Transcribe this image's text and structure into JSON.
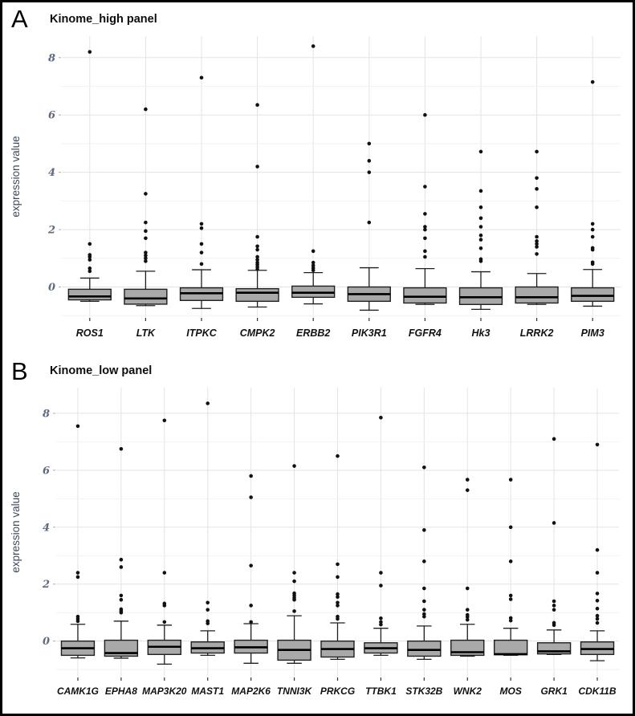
{
  "figure": {
    "background": "#ffffff",
    "border_color": "#000000"
  },
  "style": {
    "box_fill": "#a9a9a9",
    "box_stroke": "#1f1f1f",
    "median_color": "#000000",
    "whisker_color": "#1f1f1f",
    "outlier_color": "#111111",
    "grid_major": "#e3e3e3",
    "grid_minor": "#f2f2f2",
    "x_tick_color": "#333333",
    "y_tick_color": "#aaaaaa",
    "tick_label_color": "#5c6b80",
    "axis_title_color": "#3e4a5c",
    "x_label_color": "#111111"
  },
  "chart_data": [
    {
      "type": "boxplot",
      "letter": "A",
      "title": "Kinome_high panel",
      "ylabel": "expression value",
      "yticks": [
        0,
        2,
        4,
        6,
        8
      ],
      "ylim": [
        -1.05,
        8.75
      ],
      "grid": true,
      "legend": "none",
      "categories": [
        "ROS1",
        "LTK",
        "ITPKC",
        "CMPK2",
        "ERBB2",
        "PIK3R1",
        "FGFR4",
        "Hk3",
        "LRRK2",
        "PIM3"
      ],
      "boxes": [
        {
          "lo": -0.5,
          "q1": -0.45,
          "med": -0.33,
          "q3": -0.08,
          "hi": 0.31,
          "out": [
            0.55,
            0.65,
            0.95,
            1.05,
            1.12,
            1.5,
            8.2
          ]
        },
        {
          "lo": -0.65,
          "q1": -0.6,
          "med": -0.4,
          "q3": -0.08,
          "hi": 0.55,
          "out": [
            0.9,
            1.0,
            1.1,
            1.2,
            1.7,
            1.95,
            2.25,
            3.25,
            6.2
          ]
        },
        {
          "lo": -0.75,
          "q1": -0.47,
          "med": -0.22,
          "q3": -0.03,
          "hi": 0.6,
          "out": [
            0.8,
            1.2,
            1.5,
            2.05,
            2.2,
            7.3
          ]
        },
        {
          "lo": -0.7,
          "q1": -0.5,
          "med": -0.2,
          "q3": -0.06,
          "hi": 0.58,
          "out": [
            0.62,
            0.7,
            0.78,
            0.85,
            0.95,
            1.05,
            1.3,
            1.42,
            1.75,
            4.2,
            6.35
          ]
        },
        {
          "lo": -0.59,
          "q1": -0.36,
          "med": -0.2,
          "q3": 0.03,
          "hi": 0.5,
          "out": [
            0.58,
            0.66,
            0.75,
            0.85,
            1.25,
            8.4
          ]
        },
        {
          "lo": -0.81,
          "q1": -0.5,
          "med": -0.25,
          "q3": 0.0,
          "hi": 0.67,
          "out": [
            2.25,
            4.0,
            4.4,
            5.0
          ]
        },
        {
          "lo": -0.61,
          "q1": -0.56,
          "med": -0.34,
          "q3": -0.03,
          "hi": 0.64,
          "out": [
            1.05,
            1.25,
            1.7,
            2.0,
            2.1,
            2.55,
            3.5,
            6.0
          ]
        },
        {
          "lo": -0.78,
          "q1": -0.61,
          "med": -0.36,
          "q3": -0.03,
          "hi": 0.53,
          "out": [
            0.9,
            0.97,
            1.35,
            1.65,
            1.8,
            2.1,
            2.4,
            2.78,
            3.35,
            4.72
          ]
        },
        {
          "lo": -0.61,
          "q1": -0.56,
          "med": -0.36,
          "q3": 0.0,
          "hi": 0.47,
          "out": [
            1.15,
            1.4,
            1.5,
            1.6,
            1.75,
            2.78,
            3.42,
            3.8,
            4.72
          ]
        },
        {
          "lo": -0.67,
          "q1": -0.5,
          "med": -0.31,
          "q3": -0.03,
          "hi": 0.61,
          "out": [
            0.8,
            0.86,
            1.3,
            1.36,
            1.75,
            2.0,
            2.2,
            7.15
          ]
        }
      ]
    },
    {
      "type": "boxplot",
      "letter": "B",
      "title": "Kinome_low panel",
      "ylabel": "expression value",
      "yticks": [
        0,
        2,
        4,
        6,
        8
      ],
      "ylim": [
        -1.25,
        8.9
      ],
      "grid": true,
      "legend": "none",
      "categories": [
        "CAMK1G",
        "EPHA8",
        "MAP3K20",
        "MAST1",
        "MAP2K6",
        "TNNI3K",
        "PRKCG",
        "TTBK1",
        "STK32B",
        "WNK2",
        "MOS",
        "GRK1",
        "CDK11B"
      ],
      "boxes": [
        {
          "lo": -0.59,
          "q1": -0.5,
          "med": -0.25,
          "q3": 0.0,
          "hi": 0.59,
          "out": [
            0.7,
            0.78,
            0.86,
            2.25,
            2.4,
            7.55
          ]
        },
        {
          "lo": -0.6,
          "q1": -0.53,
          "med": -0.42,
          "q3": 0.03,
          "hi": 0.7,
          "out": [
            1.0,
            1.06,
            1.12,
            1.45,
            1.6,
            2.6,
            2.86,
            6.75
          ]
        },
        {
          "lo": -0.81,
          "q1": -0.47,
          "med": -0.2,
          "q3": 0.03,
          "hi": 0.56,
          "out": [
            0.67,
            1.25,
            1.32,
            2.4,
            7.75
          ]
        },
        {
          "lo": -0.5,
          "q1": -0.42,
          "med": -0.25,
          "q3": -0.03,
          "hi": 0.36,
          "out": [
            0.62,
            0.7,
            1.1,
            1.35,
            8.35
          ]
        },
        {
          "lo": -0.78,
          "q1": -0.42,
          "med": -0.22,
          "q3": 0.03,
          "hi": 0.61,
          "out": [
            0.67,
            1.25,
            2.65,
            5.05,
            5.8
          ]
        },
        {
          "lo": -0.78,
          "q1": -0.67,
          "med": -0.31,
          "q3": 0.03,
          "hi": 0.89,
          "out": [
            1.05,
            1.45,
            1.52,
            1.6,
            1.68,
            2.1,
            2.4,
            6.15
          ]
        },
        {
          "lo": -0.64,
          "q1": -0.56,
          "med": -0.28,
          "q3": 0.0,
          "hi": 0.64,
          "out": [
            0.78,
            0.86,
            1.25,
            1.35,
            1.55,
            1.65,
            2.25,
            2.7,
            6.5
          ]
        },
        {
          "lo": -0.5,
          "q1": -0.42,
          "med": -0.25,
          "q3": -0.06,
          "hi": 0.45,
          "out": [
            0.58,
            0.67,
            0.8,
            1.95,
            2.4,
            7.85
          ]
        },
        {
          "lo": -0.64,
          "q1": -0.53,
          "med": -0.31,
          "q3": 0.0,
          "hi": 0.53,
          "out": [
            0.86,
            0.95,
            1.1,
            1.4,
            1.85,
            2.8,
            3.9,
            6.1
          ]
        },
        {
          "lo": -0.53,
          "q1": -0.5,
          "med": -0.39,
          "q3": 0.03,
          "hi": 0.59,
          "out": [
            0.75,
            0.85,
            0.92,
            1.1,
            1.85,
            5.3,
            5.67
          ]
        },
        {
          "lo": -0.5,
          "q1": -0.48,
          "med": -0.46,
          "q3": 0.03,
          "hi": 0.45,
          "out": [
            0.72,
            0.81,
            1.47,
            1.6,
            2.8,
            4.0,
            5.67
          ]
        },
        {
          "lo": -0.47,
          "q1": -0.45,
          "med": -0.36,
          "q3": -0.06,
          "hi": 0.39,
          "out": [
            0.56,
            0.64,
            1.1,
            1.25,
            1.4,
            4.15,
            7.1
          ]
        },
        {
          "lo": -0.69,
          "q1": -0.47,
          "med": -0.28,
          "q3": -0.03,
          "hi": 0.36,
          "out": [
            0.64,
            0.78,
            0.89,
            1.14,
            1.42,
            1.67,
            2.4,
            3.2,
            6.9
          ]
        }
      ]
    }
  ]
}
